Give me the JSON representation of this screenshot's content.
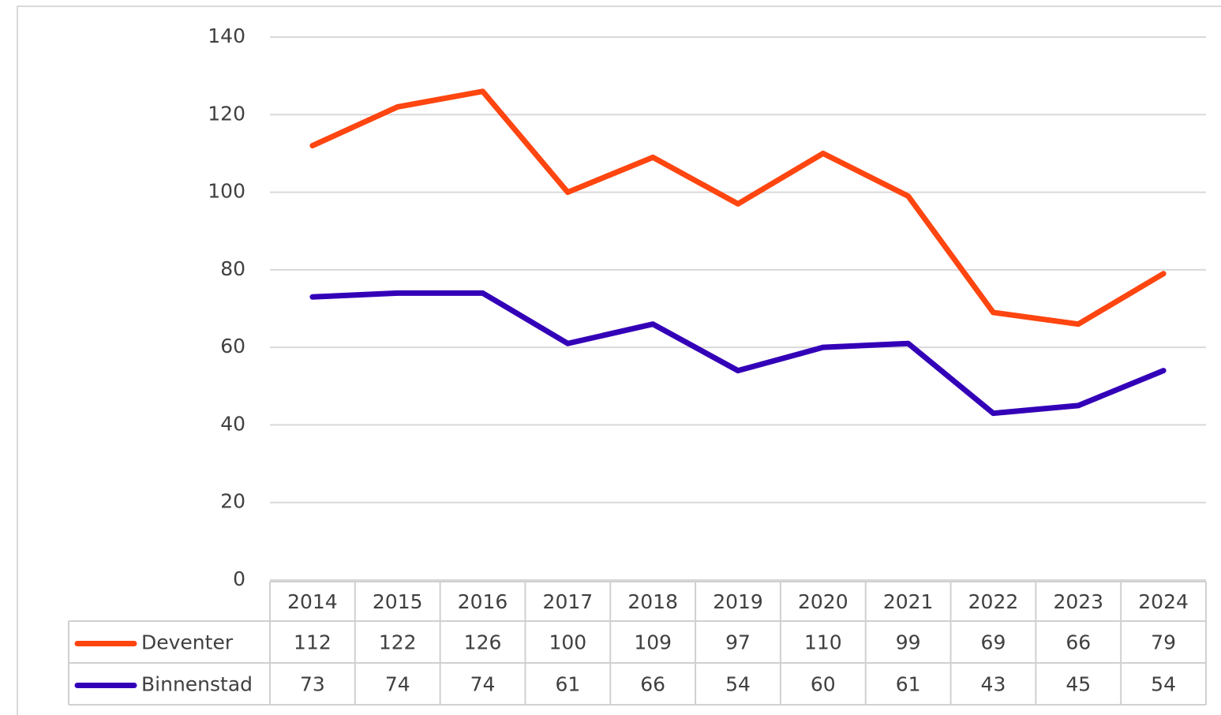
{
  "chart_data": {
    "type": "line",
    "categories": [
      "2014",
      "2015",
      "2016",
      "2017",
      "2018",
      "2019",
      "2020",
      "2021",
      "2022",
      "2023",
      "2024"
    ],
    "series": [
      {
        "name": "Deventer",
        "color": "#ff4510",
        "values": [
          112,
          122,
          126,
          100,
          109,
          97,
          110,
          99,
          69,
          66,
          79
        ]
      },
      {
        "name": "Binnenstad",
        "color": "#3300b8",
        "values": [
          73,
          74,
          74,
          61,
          66,
          54,
          60,
          61,
          43,
          45,
          54
        ]
      }
    ],
    "ylim": [
      0,
      140
    ],
    "yticks": [
      0,
      20,
      40,
      60,
      80,
      100,
      120,
      140
    ],
    "grid": true,
    "data_table": true
  }
}
